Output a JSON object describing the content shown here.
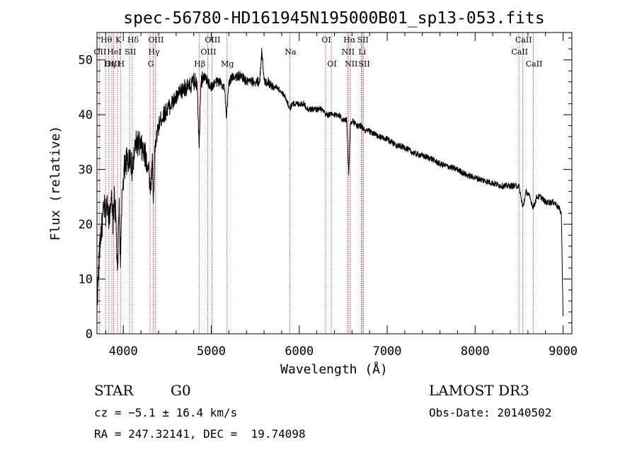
{
  "chart_data": {
    "type": "line",
    "title": "spec-56780-HD161945N195000B01_sp13-053.fits",
    "xlabel": "Wavelength (Å)",
    "ylabel": "Flux (relative)",
    "xlim": [
      3700,
      9100
    ],
    "ylim": [
      0,
      55
    ],
    "xticks": [
      4000,
      5000,
      6000,
      7000,
      8000,
      9000
    ],
    "xtick_labels": [
      "4000",
      "5000",
      "6000",
      "7000",
      "8000",
      "9000"
    ],
    "yticks": [
      0,
      10,
      20,
      30,
      40,
      50
    ],
    "ytick_labels": [
      "0",
      "10",
      "20",
      "30",
      "40",
      "50"
    ],
    "spectrum_anchors": {
      "x": [
        3700,
        3720,
        3740,
        3760,
        3780,
        3800,
        3820,
        3840,
        3860,
        3880,
        3900,
        3920,
        3934,
        3950,
        3968,
        3990,
        4010,
        4030,
        4050,
        4080,
        4102,
        4130,
        4160,
        4200,
        4230,
        4260,
        4290,
        4310,
        4330,
        4340,
        4360,
        4390,
        4420,
        4460,
        4500,
        4550,
        4600,
        4650,
        4700,
        4750,
        4800,
        4840,
        4861,
        4880,
        4920,
        4960,
        5000,
        5050,
        5100,
        5150,
        5172,
        5200,
        5250,
        5300,
        5350,
        5400,
        5450,
        5500,
        5550,
        5575,
        5600,
        5650,
        5700,
        5750,
        5800,
        5850,
        5893,
        5920,
        5950,
        6000,
        6050,
        6100,
        6150,
        6200,
        6250,
        6300,
        6350,
        6400,
        6450,
        6500,
        6540,
        6563,
        6580,
        6600,
        6650,
        6700,
        6750,
        6800,
        6900,
        7000,
        7100,
        7200,
        7300,
        7400,
        7500,
        7600,
        7700,
        7800,
        7900,
        8000,
        8100,
        8200,
        8300,
        8400,
        8498,
        8542,
        8580,
        8620,
        8662,
        8700,
        8750,
        8800,
        8850,
        8900,
        8950,
        8980,
        9000
      ],
      "y": [
        5,
        12,
        18,
        20,
        23,
        22,
        24,
        21,
        26,
        20,
        25,
        19,
        9,
        24,
        14,
        27,
        30,
        32,
        31,
        33,
        29,
        34,
        35,
        34,
        33,
        32,
        30,
        26,
        32,
        24,
        34,
        37,
        39,
        40,
        41,
        42,
        43,
        44,
        45,
        45,
        46,
        46,
        34,
        46,
        47,
        46,
        45,
        46,
        46,
        45,
        39,
        46,
        47,
        47,
        47,
        46,
        46,
        46,
        46,
        52,
        46,
        46,
        45,
        45,
        44,
        43,
        41,
        42,
        42,
        42,
        42,
        41,
        41,
        41,
        41,
        40,
        40,
        40,
        40,
        39,
        39,
        29,
        38,
        39,
        38,
        38,
        37,
        37,
        36,
        35.5,
        34.5,
        34,
        33,
        32.5,
        32,
        31,
        30.5,
        30,
        29,
        28.5,
        28,
        27.5,
        27,
        27,
        27,
        23,
        26,
        25,
        23,
        25,
        25,
        24,
        24,
        24,
        23,
        22,
        3
      ]
    },
    "line_markers": [
      {
        "x": 3727,
        "row": 1,
        "label": "OII"
      },
      {
        "x": 3798,
        "row": 0,
        "label": "Hθ"
      },
      {
        "x": 3835,
        "row": 2,
        "label": "Hη"
      },
      {
        "x": 3869,
        "row": 2,
        "label": "OIII"
      },
      {
        "x": 3889,
        "row": 1,
        "label": "HeI"
      },
      {
        "x": 3934,
        "row": 0,
        "label": "K"
      },
      {
        "x": 3968,
        "row": 2,
        "label": "H"
      },
      {
        "x": 4072,
        "row": 1,
        "label": "SII"
      },
      {
        "x": 4102,
        "row": 0,
        "label": "Hδ"
      },
      {
        "x": 4304,
        "row": 2,
        "label": "G"
      },
      {
        "x": 4340,
        "row": 1,
        "label": "Hγ"
      },
      {
        "x": 4363,
        "row": 0,
        "label": "OIII"
      },
      {
        "x": 4861,
        "row": 2,
        "label": "Hβ"
      },
      {
        "x": 4959,
        "row": 1,
        "label": "OIII"
      },
      {
        "x": 5007,
        "row": 0,
        "label": "OIII"
      },
      {
        "x": 5175,
        "row": 2,
        "label": "Mg"
      },
      {
        "x": 5893,
        "row": 1,
        "label": "Na"
      },
      {
        "x": 6300,
        "row": 0,
        "label": "OI"
      },
      {
        "x": 6364,
        "row": 2,
        "label": "OI"
      },
      {
        "x": 6548,
        "row": 1,
        "label": "NII"
      },
      {
        "x": 6563,
        "row": 0,
        "label": "Hα"
      },
      {
        "x": 6583,
        "row": 2,
        "label": "NII"
      },
      {
        "x": 6708,
        "row": 1,
        "label": "Li"
      },
      {
        "x": 6716,
        "row": 0,
        "label": "SII"
      },
      {
        "x": 6731,
        "row": 2,
        "label": "SII"
      },
      {
        "x": 8498,
        "row": 1,
        "label": "CaII"
      },
      {
        "x": 8542,
        "row": 0,
        "label": "CaII"
      },
      {
        "x": 8662,
        "row": 2,
        "label": "CaII"
      }
    ]
  },
  "info": {
    "object_class": "STAR",
    "subclass": "G0",
    "survey": "LAMOST DR3",
    "cz": "cz = −5.1 ± 16.4 km/s",
    "obs_date": "Obs-Date: 20140502",
    "coords": "RA = 247.32141, DEC =  19.74098"
  },
  "colors": {
    "line": "#000000",
    "marker": "#b22222",
    "background": "#ffffff"
  }
}
